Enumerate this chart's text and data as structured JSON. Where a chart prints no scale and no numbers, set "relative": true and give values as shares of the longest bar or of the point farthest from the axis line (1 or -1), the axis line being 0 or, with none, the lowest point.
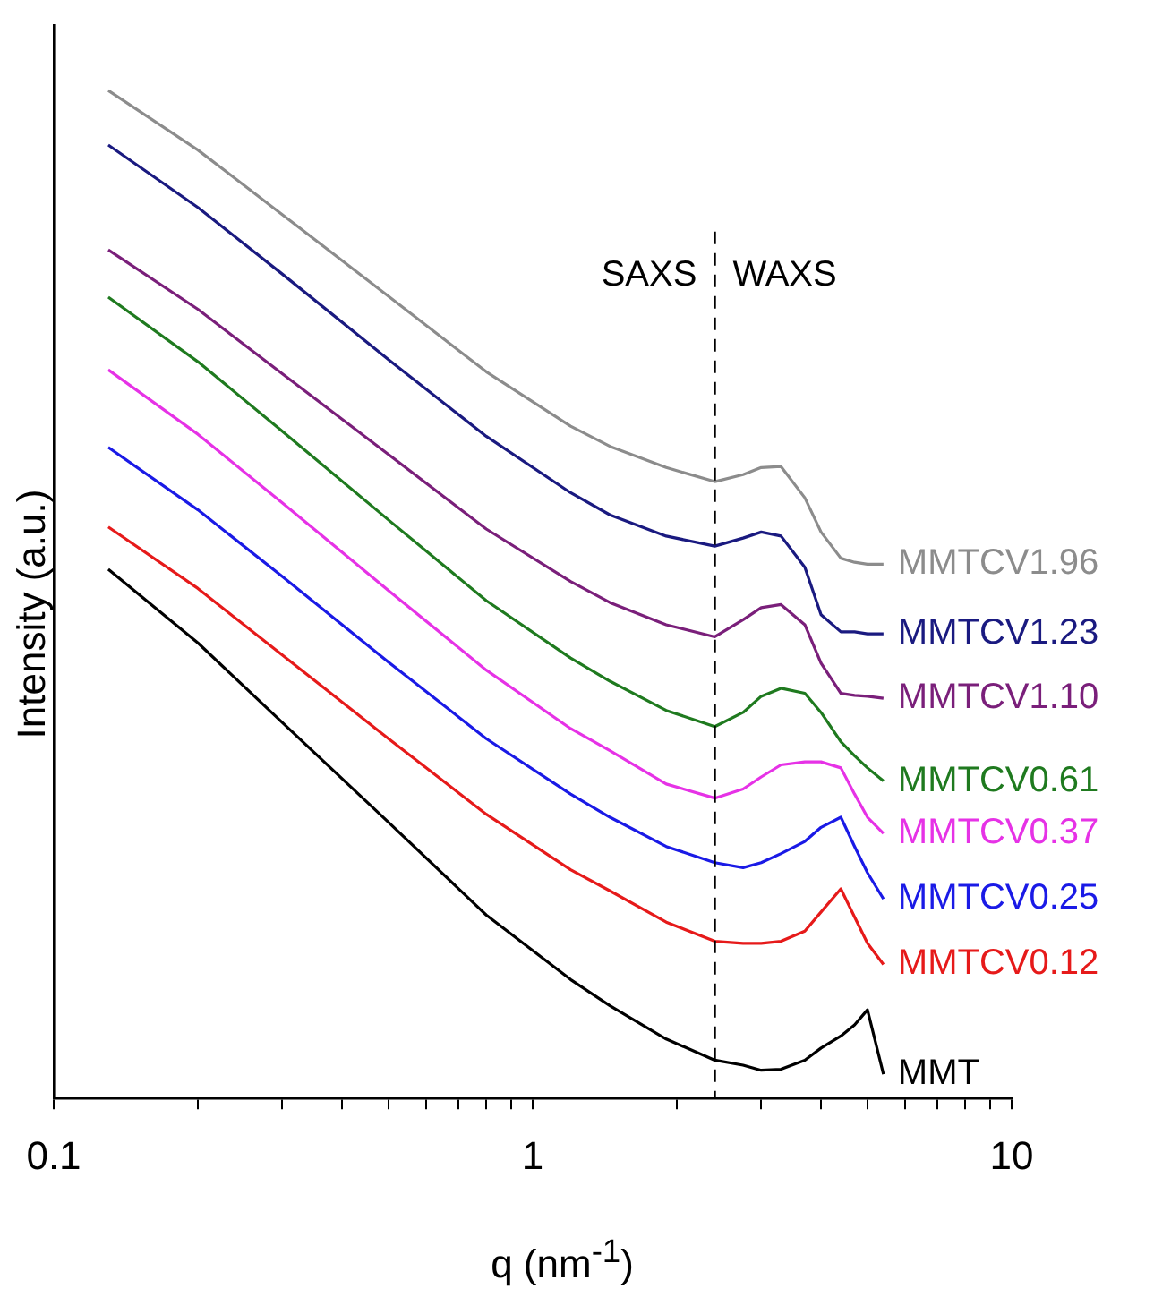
{
  "chart_data": {
    "type": "line",
    "relative": true,
    "xlabel": "q (nm$^{-1}$)",
    "ylabel": "Intensity (a.u.)",
    "log": "x",
    "grid": false,
    "legend": false,
    "tick_labels": "x",
    "marker": "none",
    "line_style": "solid",
    "x": [
      0.13,
      0.2,
      0.3,
      0.5,
      0.8,
      1.2,
      1.45,
      1.9,
      2.4,
      2.75,
      3.0,
      3.3,
      3.7,
      4.0,
      4.4,
      4.7,
      5.0,
      5.4
    ],
    "xlim": [
      0.1,
      10
    ],
    "xticks": [
      0.1,
      {
        "value": 0.2,
        "label": null
      },
      {
        "value": 0.3,
        "label": null
      },
      {
        "value": 0.4,
        "label": null
      },
      {
        "value": 0.5,
        "label": null
      },
      {
        "value": 0.6,
        "label": null
      },
      {
        "value": 0.7,
        "label": null
      },
      {
        "value": 0.8,
        "label": null
      },
      {
        "value": 0.9,
        "label": null
      },
      1,
      {
        "value": 2,
        "label": null
      },
      {
        "value": 3,
        "label": null
      },
      {
        "value": 4,
        "label": null
      },
      {
        "value": 5,
        "label": null
      },
      {
        "value": 6,
        "label": null
      },
      {
        "value": 7,
        "label": null
      },
      {
        "value": 8,
        "label": null
      },
      {
        "value": 9,
        "label": null
      },
      10
    ],
    "ref_lines": [
      {
        "axis": "x",
        "value": 2.4,
        "line_style": "dashed",
        "color": "#000000"
      }
    ],
    "annotations": [
      "SAXS",
      "WAXS"
    ],
    "series": [
      {
        "name": "MMTCV1.96",
        "color": "#8c8c8c",
        "values": [
          1.0,
          0.941,
          0.877,
          0.796,
          0.721,
          0.667,
          0.647,
          0.626,
          0.612,
          0.619,
          0.626,
          0.627,
          0.596,
          0.562,
          0.536,
          0.532,
          0.53,
          0.53
        ]
      },
      {
        "name": "MMTCV1.23",
        "color": "#1a1a80",
        "values": [
          0.946,
          0.884,
          0.818,
          0.733,
          0.657,
          0.601,
          0.579,
          0.558,
          0.548,
          0.556,
          0.562,
          0.558,
          0.527,
          0.48,
          0.463,
          0.463,
          0.461,
          0.461
        ]
      },
      {
        "name": "MMTCV1.10",
        "color": "#7a1f7a",
        "values": [
          0.842,
          0.783,
          0.719,
          0.639,
          0.565,
          0.513,
          0.492,
          0.47,
          0.458,
          0.475,
          0.487,
          0.49,
          0.47,
          0.432,
          0.402,
          0.4,
          0.399,
          0.397
        ]
      },
      {
        "name": "MMTCV0.61",
        "color": "#1f7a1f",
        "values": [
          0.795,
          0.731,
          0.662,
          0.574,
          0.494,
          0.437,
          0.414,
          0.385,
          0.369,
          0.383,
          0.399,
          0.407,
          0.402,
          0.383,
          0.354,
          0.34,
          0.328,
          0.315
        ]
      },
      {
        "name": "MMTCV0.37",
        "color": "#e632e6",
        "values": [
          0.723,
          0.659,
          0.591,
          0.504,
          0.425,
          0.367,
          0.345,
          0.312,
          0.298,
          0.307,
          0.319,
          0.331,
          0.334,
          0.334,
          0.328,
          0.302,
          0.279,
          0.263
        ]
      },
      {
        "name": "MMTCV0.25",
        "color": "#1a1ae6",
        "values": [
          0.646,
          0.584,
          0.518,
          0.433,
          0.357,
          0.302,
          0.279,
          0.25,
          0.234,
          0.229,
          0.234,
          0.243,
          0.255,
          0.269,
          0.279,
          0.25,
          0.224,
          0.198
        ]
      },
      {
        "name": "MMTCV0.12",
        "color": "#e61a1a",
        "values": [
          0.567,
          0.506,
          0.44,
          0.357,
          0.282,
          0.227,
          0.206,
          0.175,
          0.156,
          0.154,
          0.154,
          0.156,
          0.166,
          0.185,
          0.208,
          0.18,
          0.154,
          0.133
        ]
      },
      {
        "name": "MMT",
        "color": "#000000",
        "values": [
          0.525,
          0.452,
          0.373,
          0.274,
          0.182,
          0.118,
          0.092,
          0.059,
          0.038,
          0.033,
          0.028,
          0.029,
          0.038,
          0.05,
          0.062,
          0.073,
          0.088,
          0.024
        ]
      }
    ]
  }
}
